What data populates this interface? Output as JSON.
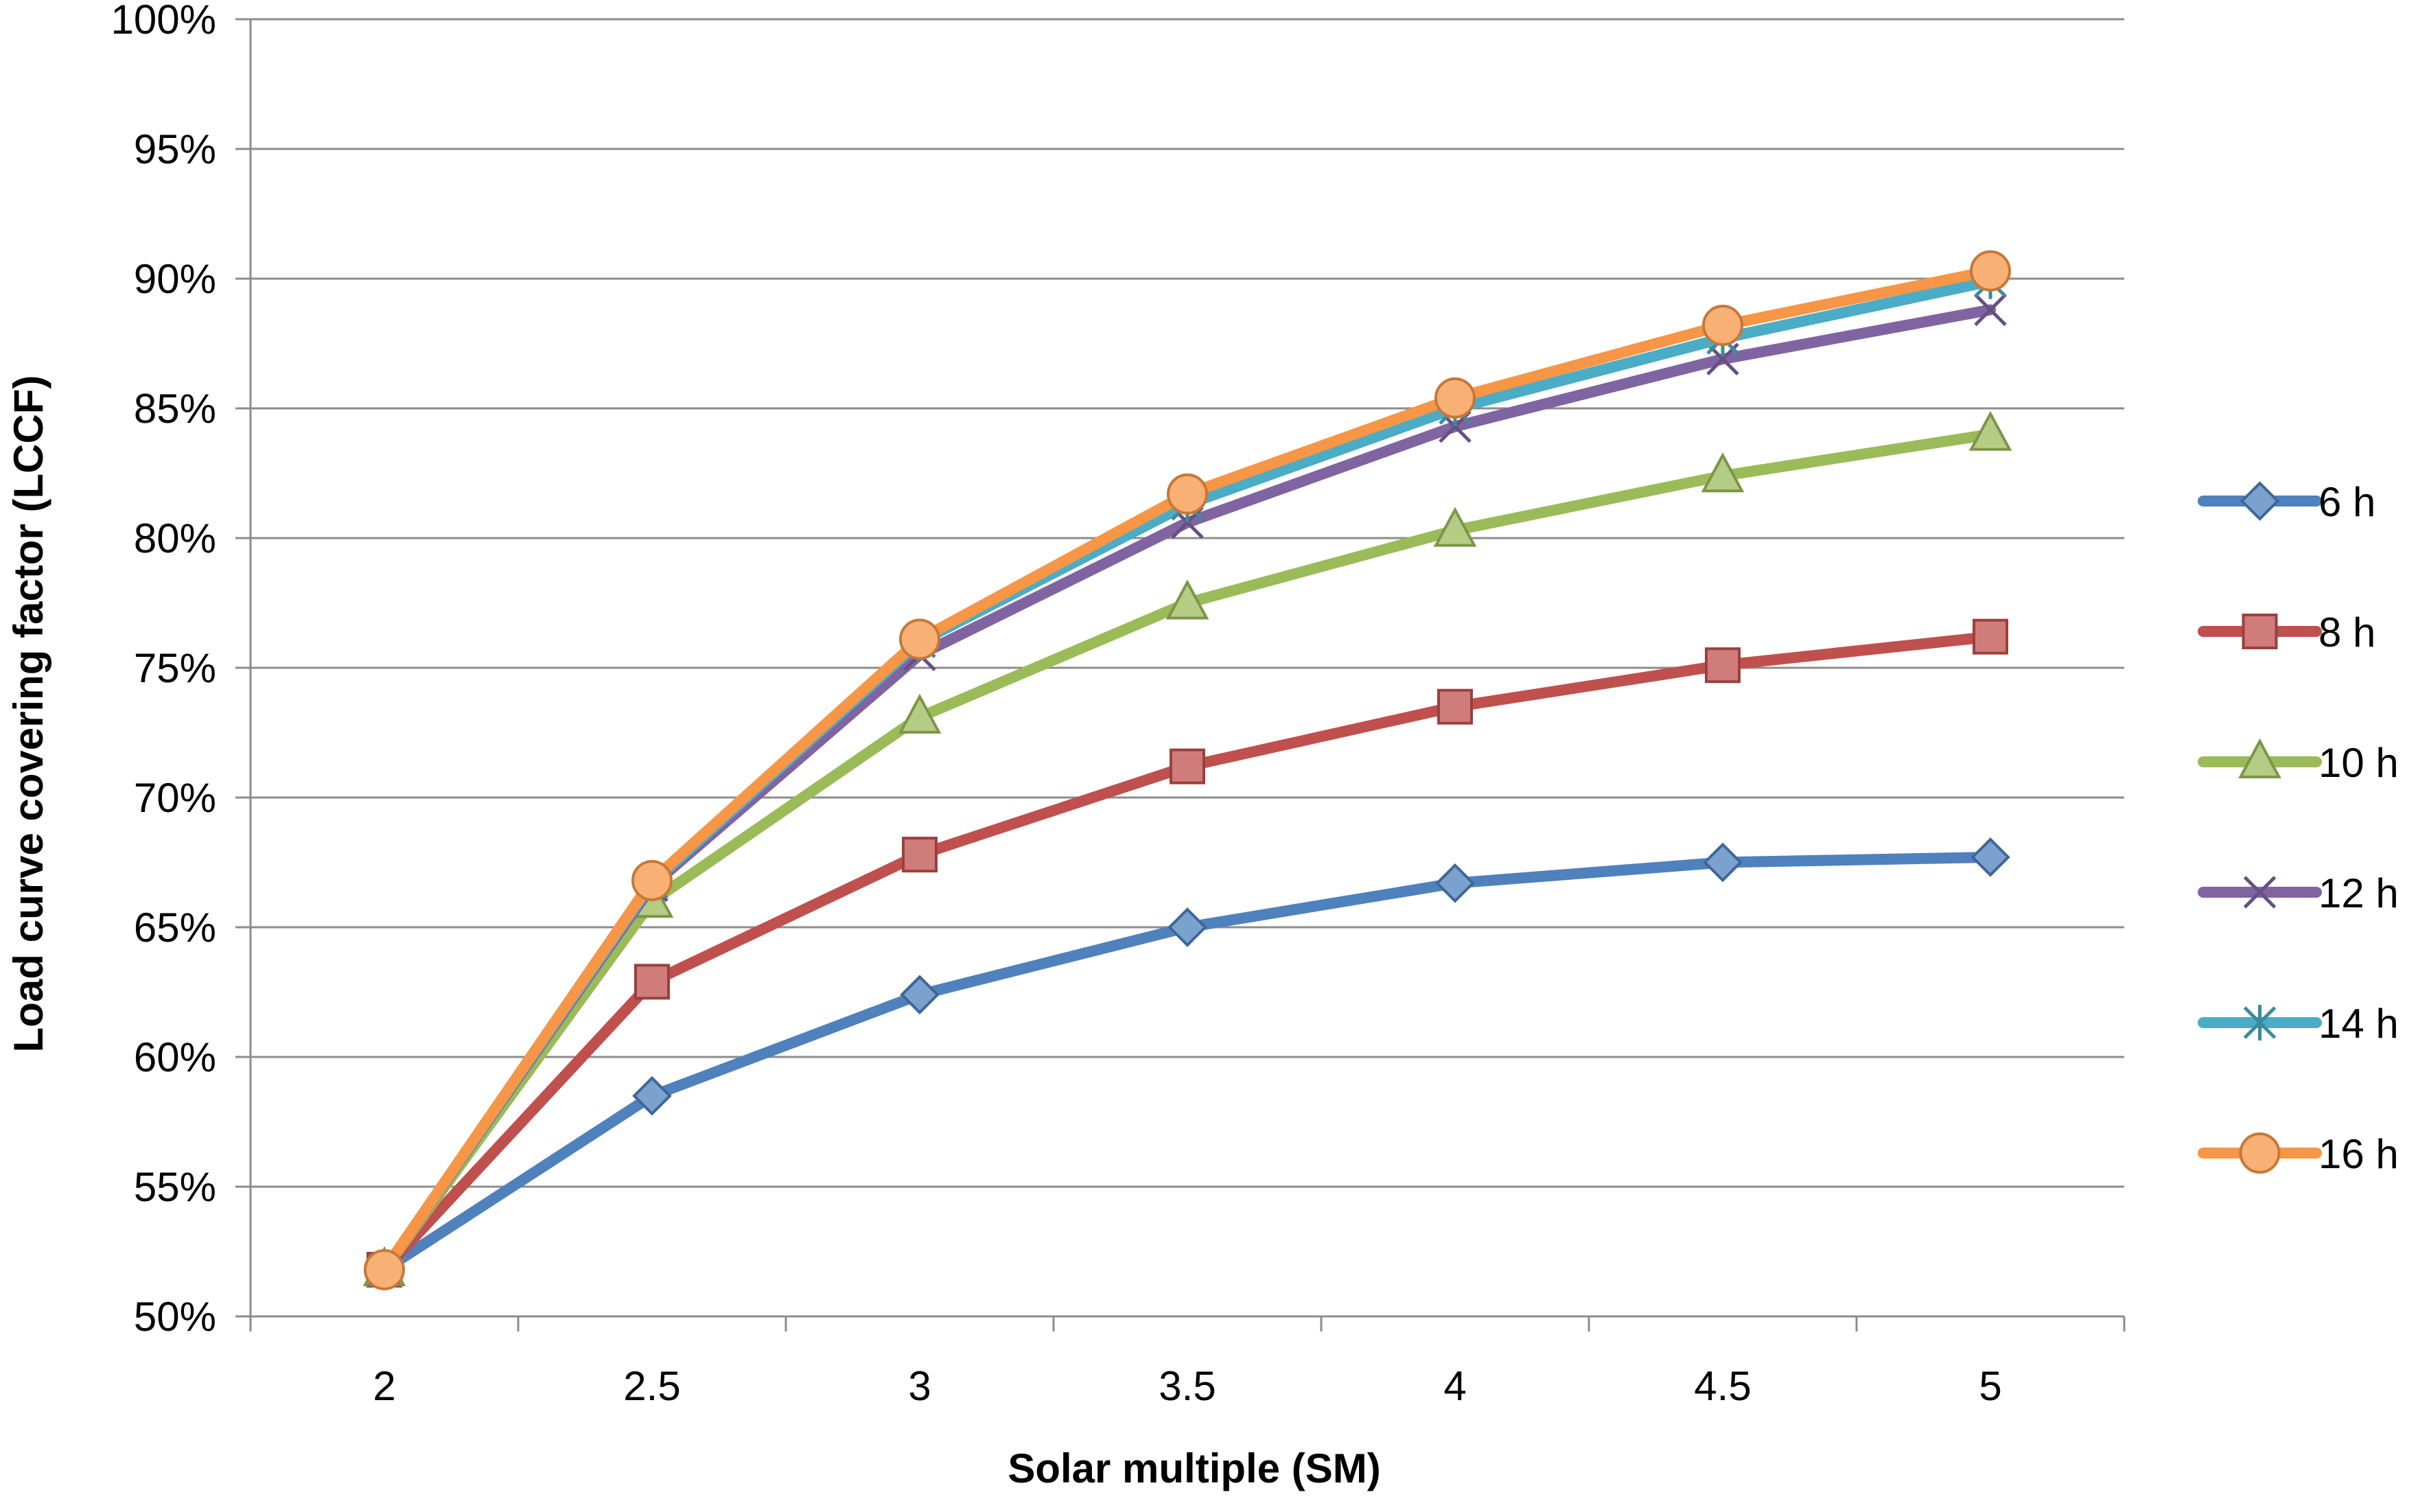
{
  "chart_data": {
    "type": "line",
    "title": "",
    "xlabel": "Solar multiple (SM)",
    "ylabel": "Load curve covering factor (LCCF)",
    "categories": [
      "2",
      "2.5",
      "3",
      "3.5",
      "4",
      "4.5",
      "5"
    ],
    "x": [
      2,
      2.5,
      3,
      3.5,
      4,
      4.5,
      5
    ],
    "ylim": [
      0.5,
      1.0
    ],
    "yticks": [
      0.5,
      0.55,
      0.6,
      0.65,
      0.7,
      0.75,
      0.8,
      0.85,
      0.9,
      0.95,
      1.0
    ],
    "ytick_labels": [
      "50%",
      "55%",
      "60%",
      "65%",
      "70%",
      "75%",
      "80%",
      "85%",
      "90%",
      "95%",
      "100%"
    ],
    "grid": "horizontal",
    "legend_position": "right",
    "series": [
      {
        "name": "6 h",
        "color": "#4F81BD",
        "marker": "diamond",
        "values": [
          0.518,
          0.585,
          0.624,
          0.65,
          0.667,
          0.675,
          0.677
        ]
      },
      {
        "name": "8 h",
        "color": "#C0504D",
        "marker": "square",
        "values": [
          0.518,
          0.629,
          0.678,
          0.712,
          0.735,
          0.751,
          0.762
        ]
      },
      {
        "name": "10 h",
        "color": "#9BBB59",
        "marker": "triangle",
        "values": [
          0.518,
          0.66,
          0.731,
          0.775,
          0.803,
          0.824,
          0.84
        ]
      },
      {
        "name": "12 h",
        "color": "#8064A2",
        "marker": "x",
        "values": [
          0.518,
          0.666,
          0.755,
          0.806,
          0.843,
          0.869,
          0.888
        ]
      },
      {
        "name": "14 h",
        "color": "#4BACC6",
        "marker": "star",
        "values": [
          0.518,
          0.667,
          0.76,
          0.813,
          0.85,
          0.877,
          0.899
        ]
      },
      {
        "name": "16 h",
        "color": "#F79646",
        "marker": "circle",
        "values": [
          0.518,
          0.668,
          0.761,
          0.817,
          0.854,
          0.882,
          0.903
        ]
      }
    ]
  }
}
